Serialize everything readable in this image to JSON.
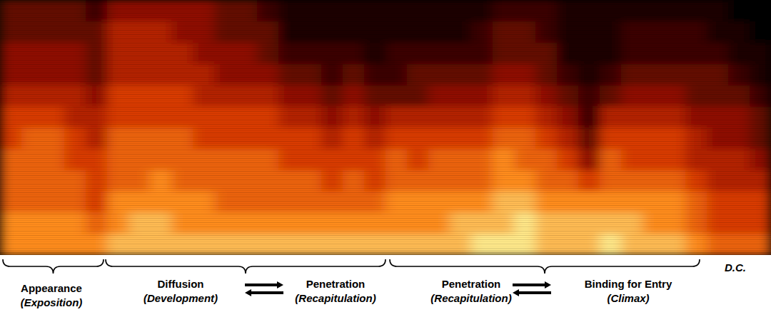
{
  "chart_data": {
    "type": "heatmap",
    "tick_labels": false,
    "zlim": [
      0,
      10
    ],
    "cells": [
      [
        3,
        3,
        3,
        3,
        2,
        4,
        4,
        4,
        4,
        4,
        3,
        3,
        2,
        1,
        1,
        1,
        1,
        1,
        1,
        1,
        1,
        1,
        1,
        2,
        2,
        2,
        1,
        1,
        1,
        1,
        1,
        1,
        1,
        1,
        0,
        0
      ],
      [
        3,
        3,
        3,
        3,
        3,
        5,
        5,
        5,
        4,
        4,
        3,
        3,
        3,
        1,
        1,
        1,
        1,
        1,
        1,
        1,
        1,
        1,
        2,
        3,
        3,
        2,
        1,
        1,
        1,
        2,
        2,
        2,
        2,
        1,
        1,
        0
      ],
      [
        4,
        4,
        4,
        4,
        3,
        5,
        5,
        5,
        5,
        4,
        4,
        4,
        3,
        2,
        2,
        2,
        2,
        1,
        2,
        2,
        2,
        2,
        2,
        3,
        3,
        3,
        1,
        1,
        1,
        2,
        2,
        2,
        2,
        2,
        1,
        1
      ],
      [
        4,
        4,
        4,
        4,
        3,
        5,
        5,
        5,
        5,
        5,
        4,
        4,
        4,
        3,
        3,
        2,
        3,
        2,
        2,
        3,
        3,
        3,
        3,
        4,
        4,
        3,
        2,
        1,
        2,
        3,
        3,
        3,
        3,
        3,
        2,
        1
      ],
      [
        5,
        5,
        5,
        5,
        4,
        6,
        6,
        6,
        6,
        5,
        5,
        5,
        5,
        4,
        4,
        3,
        4,
        3,
        3,
        3,
        4,
        4,
        4,
        5,
        5,
        4,
        3,
        2,
        3,
        4,
        4,
        4,
        3,
        3,
        3,
        2
      ],
      [
        6,
        6,
        6,
        5,
        5,
        6,
        6,
        6,
        6,
        6,
        6,
        6,
        6,
        5,
        5,
        4,
        5,
        4,
        5,
        5,
        5,
        5,
        5,
        6,
        6,
        5,
        4,
        2,
        5,
        5,
        5,
        5,
        4,
        4,
        4,
        3
      ],
      [
        6,
        7,
        7,
        6,
        5,
        7,
        7,
        7,
        7,
        6,
        6,
        6,
        6,
        6,
        6,
        5,
        6,
        5,
        6,
        6,
        6,
        6,
        6,
        7,
        7,
        6,
        5,
        3,
        6,
        6,
        6,
        6,
        5,
        4,
        4,
        3
      ],
      [
        7,
        7,
        7,
        6,
        6,
        7,
        7,
        7,
        7,
        7,
        7,
        7,
        7,
        6,
        6,
        6,
        6,
        6,
        7,
        6,
        7,
        7,
        7,
        8,
        7,
        7,
        6,
        4,
        7,
        6,
        6,
        6,
        5,
        5,
        5,
        4
      ],
      [
        7,
        7,
        7,
        7,
        6,
        7,
        7,
        8,
        7,
        7,
        7,
        7,
        7,
        7,
        7,
        6,
        7,
        6,
        7,
        7,
        7,
        7,
        7,
        8,
        8,
        7,
        7,
        6,
        7,
        7,
        7,
        7,
        6,
        5,
        5,
        5
      ],
      [
        7,
        7,
        7,
        7,
        6,
        8,
        8,
        8,
        8,
        8,
        7,
        7,
        7,
        7,
        7,
        7,
        7,
        7,
        8,
        8,
        8,
        8,
        8,
        9,
        9,
        8,
        8,
        8,
        8,
        8,
        8,
        8,
        7,
        6,
        6,
        6
      ],
      [
        8,
        8,
        8,
        8,
        7,
        8,
        9,
        9,
        8,
        8,
        8,
        8,
        8,
        8,
        8,
        8,
        8,
        8,
        8,
        8,
        8,
        9,
        9,
        9,
        10,
        9,
        9,
        9,
        9,
        9,
        8,
        8,
        7,
        6,
        6,
        6
      ],
      [
        8,
        8,
        8,
        8,
        8,
        9,
        9,
        9,
        9,
        9,
        9,
        9,
        9,
        9,
        9,
        9,
        9,
        9,
        9,
        9,
        9,
        9,
        10,
        10,
        10,
        9,
        9,
        9,
        10,
        9,
        9,
        9,
        8,
        7,
        7,
        7
      ]
    ],
    "annotations": [
      {
        "items": [
          {
            "label": "Appearance",
            "sublabel": "(Exposition)"
          }
        ]
      },
      {
        "items": [
          {
            "label": "Diffusion",
            "sublabel": "(Development)"
          },
          {
            "label": "Penetration",
            "sublabel": "(Recapitulation)"
          }
        ]
      },
      {
        "items": [
          {
            "label": "Penetration",
            "sublabel": "(Recapitulation)"
          },
          {
            "label": "Binding for Entry",
            "sublabel": "(Climax)"
          }
        ]
      }
    ],
    "note": "D.C."
  }
}
